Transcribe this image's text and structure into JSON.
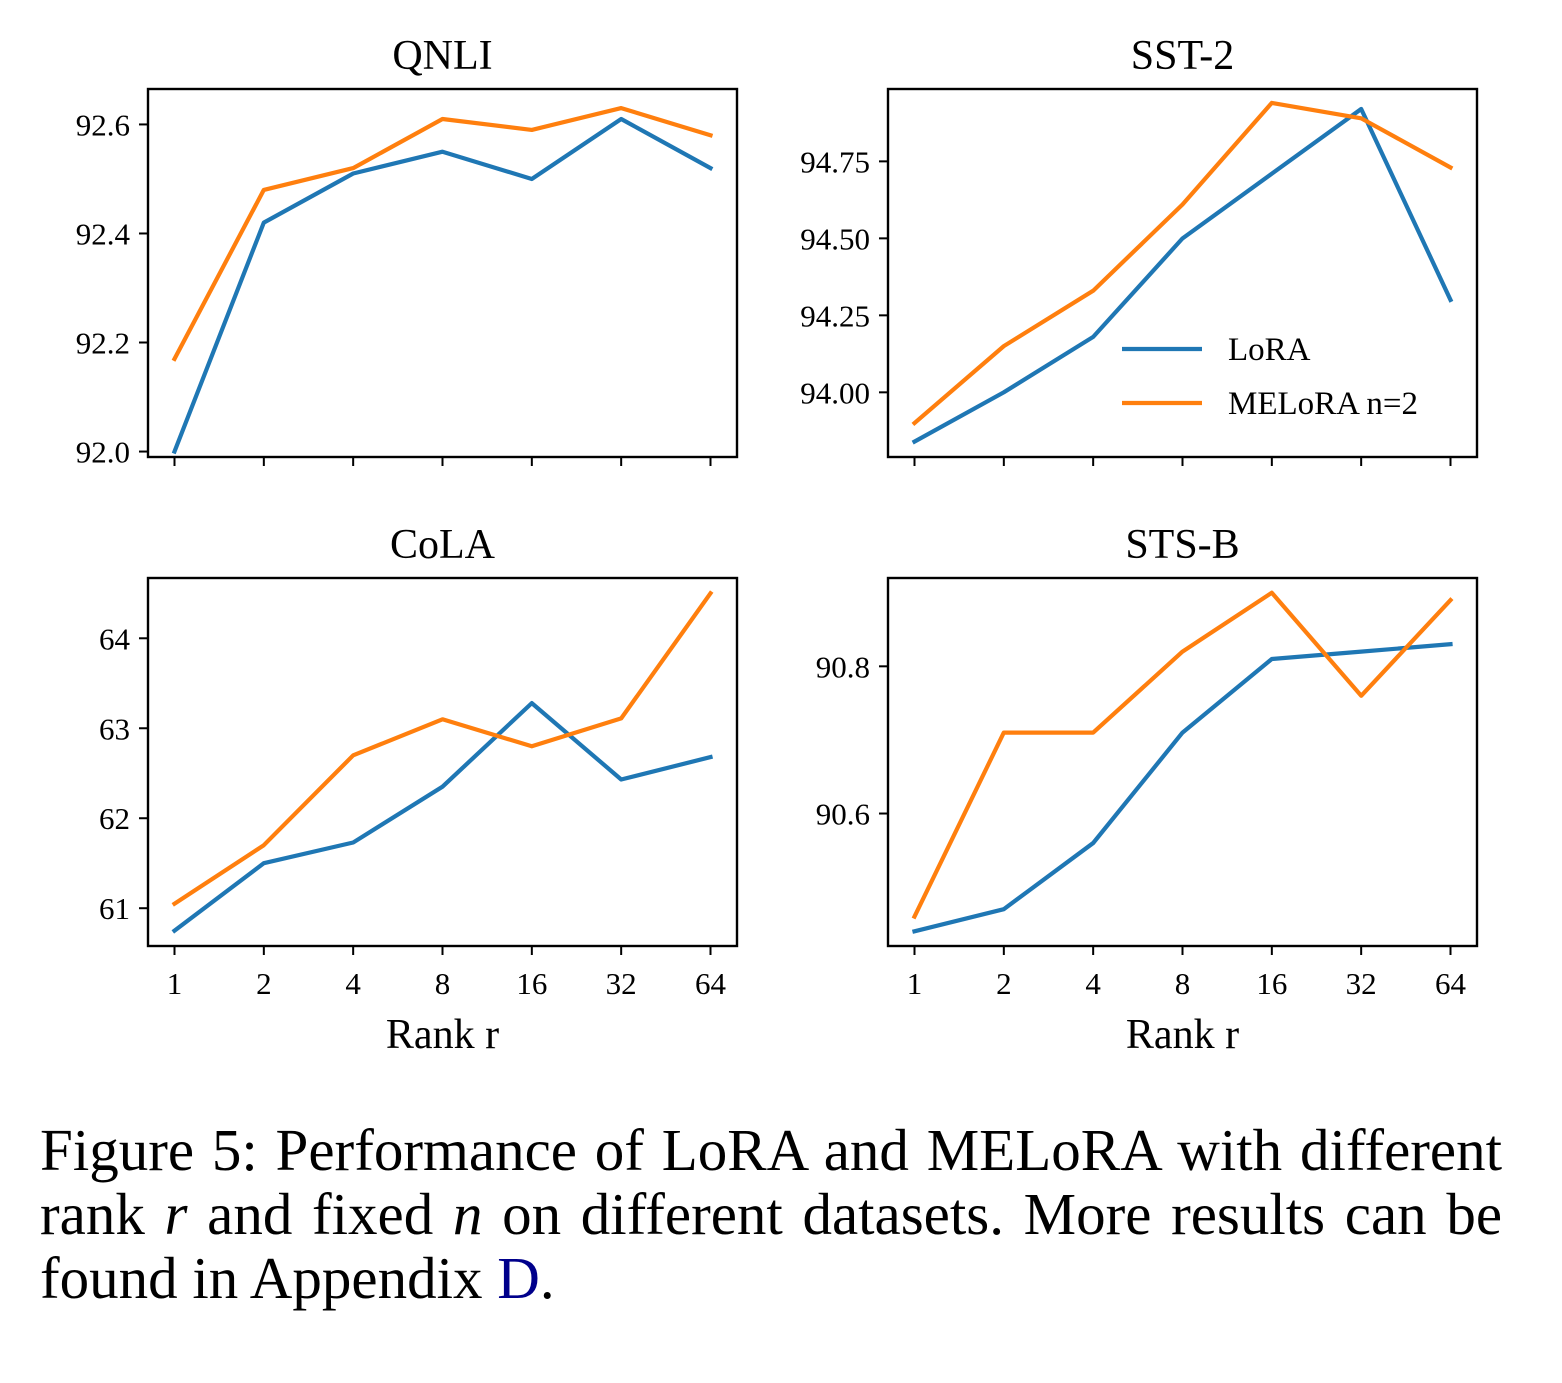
{
  "colors": {
    "lora": "#1f77b4",
    "melora": "#ff7f0e",
    "link": "#00008b"
  },
  "chart_data": [
    {
      "type": "line",
      "title": "QNLI",
      "x": [
        "1",
        "2",
        "4",
        "8",
        "16",
        "32",
        "64"
      ],
      "xlabel": "",
      "ylabel": "",
      "ylim": [
        91.99,
        92.665
      ],
      "yticks": [
        "92.0",
        "92.2",
        "92.4",
        "92.6"
      ],
      "show_x_ticklabels": false,
      "series": [
        {
          "name": "LoRA",
          "values": [
            92.0,
            92.42,
            92.51,
            92.55,
            92.5,
            92.61,
            92.52
          ]
        },
        {
          "name": "MELoRA n=2",
          "values": [
            92.17,
            92.48,
            92.52,
            92.61,
            92.59,
            92.63,
            92.58
          ]
        }
      ],
      "legend": false
    },
    {
      "type": "line",
      "title": "SST-2",
      "x": [
        "1",
        "2",
        "4",
        "8",
        "16",
        "32",
        "64"
      ],
      "xlabel": "",
      "ylabel": "",
      "ylim": [
        93.79,
        94.985
      ],
      "yticks": [
        "94.00",
        "94.25",
        "94.50",
        "94.75"
      ],
      "show_x_ticklabels": false,
      "series": [
        {
          "name": "LoRA",
          "values": [
            93.84,
            94.0,
            94.18,
            94.5,
            94.71,
            94.92,
            94.3
          ]
        },
        {
          "name": "MELoRA n=2",
          "values": [
            93.9,
            94.15,
            94.33,
            94.61,
            94.94,
            94.89,
            94.73
          ]
        }
      ],
      "legend": true,
      "legend_position": "lower-right"
    },
    {
      "type": "line",
      "title": "CoLA",
      "x": [
        "1",
        "2",
        "4",
        "8",
        "16",
        "32",
        "64"
      ],
      "xlabel": "Rank r",
      "ylabel": "",
      "ylim": [
        60.58,
        64.67
      ],
      "yticks": [
        "61",
        "62",
        "63",
        "64"
      ],
      "show_x_ticklabels": true,
      "series": [
        {
          "name": "LoRA",
          "values": [
            60.75,
            61.5,
            61.73,
            62.35,
            63.28,
            62.43,
            62.68
          ]
        },
        {
          "name": "MELoRA n=2",
          "values": [
            61.05,
            61.7,
            62.7,
            63.1,
            62.8,
            63.11,
            64.5
          ]
        }
      ],
      "legend": false
    },
    {
      "type": "line",
      "title": "STS-B",
      "x": [
        "1",
        "2",
        "4",
        "8",
        "16",
        "32",
        "64"
      ],
      "xlabel": "Rank r",
      "ylabel": "",
      "ylim": [
        90.42,
        90.92
      ],
      "yticks": [
        "90.6",
        "90.8"
      ],
      "show_x_ticklabels": true,
      "series": [
        {
          "name": "LoRA",
          "values": [
            90.44,
            90.47,
            90.56,
            90.71,
            90.81,
            90.82,
            90.83
          ]
        },
        {
          "name": "MELoRA n=2",
          "values": [
            90.46,
            90.71,
            90.71,
            90.82,
            90.9,
            90.76,
            90.89
          ]
        }
      ],
      "legend": false
    }
  ],
  "caption": {
    "prefix": "Figure 5:",
    "text1": "Performance of LoRA and MELoRA with different rank",
    "var_r": "r",
    "text2": "and fixed",
    "var_n": "n",
    "text3": "on different datasets. More results can be found in Appendix",
    "ref": "D",
    "end": "."
  }
}
